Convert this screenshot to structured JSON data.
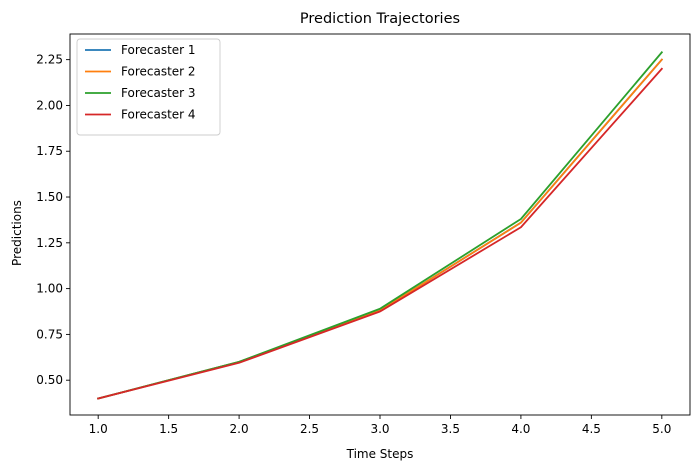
{
  "chart_data": {
    "type": "line",
    "title": "Prediction Trajectories",
    "xlabel": "Time Steps",
    "ylabel": "Predictions",
    "xlim": [
      0.8,
      5.2
    ],
    "ylim": [
      0.31,
      2.39
    ],
    "xticks": [
      1.0,
      1.5,
      2.0,
      2.5,
      3.0,
      3.5,
      4.0,
      4.5,
      5.0
    ],
    "xtick_labels": [
      "1.0",
      "1.5",
      "2.0",
      "2.5",
      "3.0",
      "3.5",
      "4.0",
      "4.5",
      "5.0"
    ],
    "yticks": [
      0.5,
      0.75,
      1.0,
      1.25,
      1.5,
      1.75,
      2.0,
      2.25
    ],
    "ytick_labels": [
      "0.50",
      "0.75",
      "1.00",
      "1.25",
      "1.50",
      "1.75",
      "2.00",
      "2.25"
    ],
    "grid": false,
    "legend_position": "top-left",
    "x": [
      1,
      2,
      3,
      4,
      5
    ],
    "series": [
      {
        "name": "Forecaster 1",
        "color": "#1f77b4",
        "values": [
          0.4,
          0.6,
          0.88,
          1.36,
          2.25
        ]
      },
      {
        "name": "Forecaster 2",
        "color": "#ff7f0e",
        "values": [
          0.4,
          0.6,
          0.88,
          1.36,
          2.25
        ]
      },
      {
        "name": "Forecaster 3",
        "color": "#2ca02c",
        "values": [
          0.4,
          0.6,
          0.89,
          1.38,
          2.29
        ]
      },
      {
        "name": "Forecaster 4",
        "color": "#d62728",
        "values": [
          0.4,
          0.595,
          0.875,
          1.335,
          2.2
        ]
      }
    ]
  }
}
